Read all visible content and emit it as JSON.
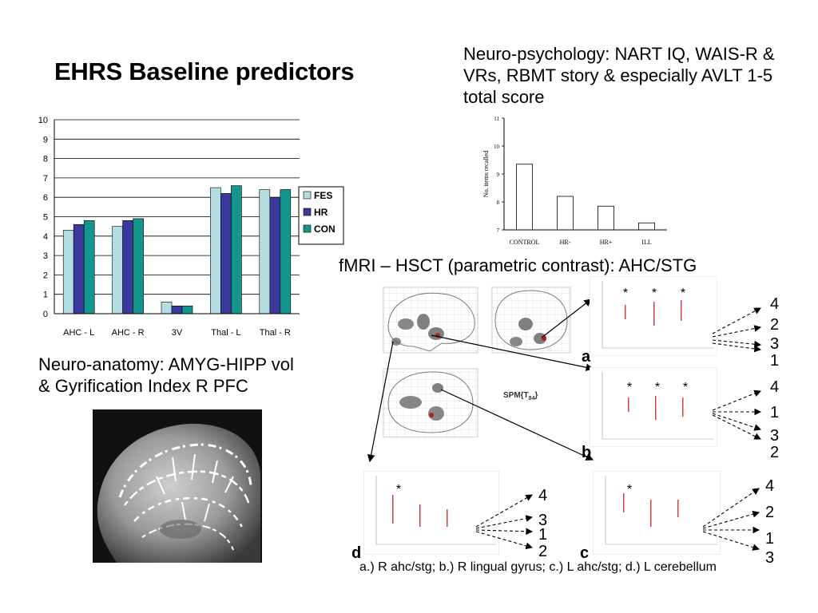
{
  "slide": {
    "title": "EHRS Baseline predictors",
    "neuropsych_caption": "Neuro-psychology: NART IQ, WAIS-R & VRs, RBMT story & especially AVLT 1-5 total score",
    "fmri_caption": "fMRI – HSCT (parametric contrast): AHC/STG",
    "neuroanatomy_caption": "Neuro-anatomy: AMYG-HIPP vol & Gyrification Index R PFC",
    "footnote": "a.) R ahc/stg; b.) R lingual gyrus; c.) L ahc/stg; d.) L cerebellum",
    "spm_label": "SPM{T",
    "spm_subscript": "84",
    "spm_suffix": "}",
    "panel_labels": {
      "a": "a",
      "b": "b",
      "c": "c",
      "d": "d"
    },
    "panel_a_numbers": [
      "4",
      "2",
      "3",
      "1"
    ],
    "panel_b_numbers": [
      "4",
      "1",
      "3",
      "2"
    ],
    "panel_c_numbers": [
      "4",
      "2",
      "1",
      "3"
    ],
    "panel_d_numbers": [
      "4",
      "3",
      "1",
      "2"
    ],
    "star": "*"
  },
  "chart_data": [
    {
      "type": "bar",
      "categories": [
        "AHC - L",
        "AHC - R",
        "3V",
        "Thal - L",
        "Thal - R"
      ],
      "series": [
        {
          "name": "FES",
          "values": [
            4.3,
            4.5,
            0.6,
            6.5,
            6.4
          ],
          "color": "#b4dde1"
        },
        {
          "name": "HR",
          "values": [
            4.6,
            4.8,
            0.4,
            6.2,
            6.0
          ],
          "color": "#3a3a9c"
        },
        {
          "name": "CON",
          "values": [
            4.8,
            4.9,
            0.4,
            6.6,
            6.4
          ],
          "color": "#14968e"
        }
      ],
      "ylim": [
        0,
        10
      ],
      "yticks": [
        "0",
        "1",
        "2",
        "3",
        "4",
        "5",
        "6",
        "7",
        "8",
        "9",
        "10"
      ],
      "grid": true,
      "legend": "right"
    },
    {
      "type": "bar",
      "categories": [
        "CONTROL",
        "HR-",
        "HR+",
        "ILL"
      ],
      "values": [
        9.35,
        8.2,
        7.85,
        7.25
      ],
      "ylabel": "No. items recalled",
      "ylim": [
        7,
        11
      ],
      "yticks": [
        "7",
        "8",
        "9",
        "10",
        "11"
      ],
      "grid": false
    }
  ]
}
